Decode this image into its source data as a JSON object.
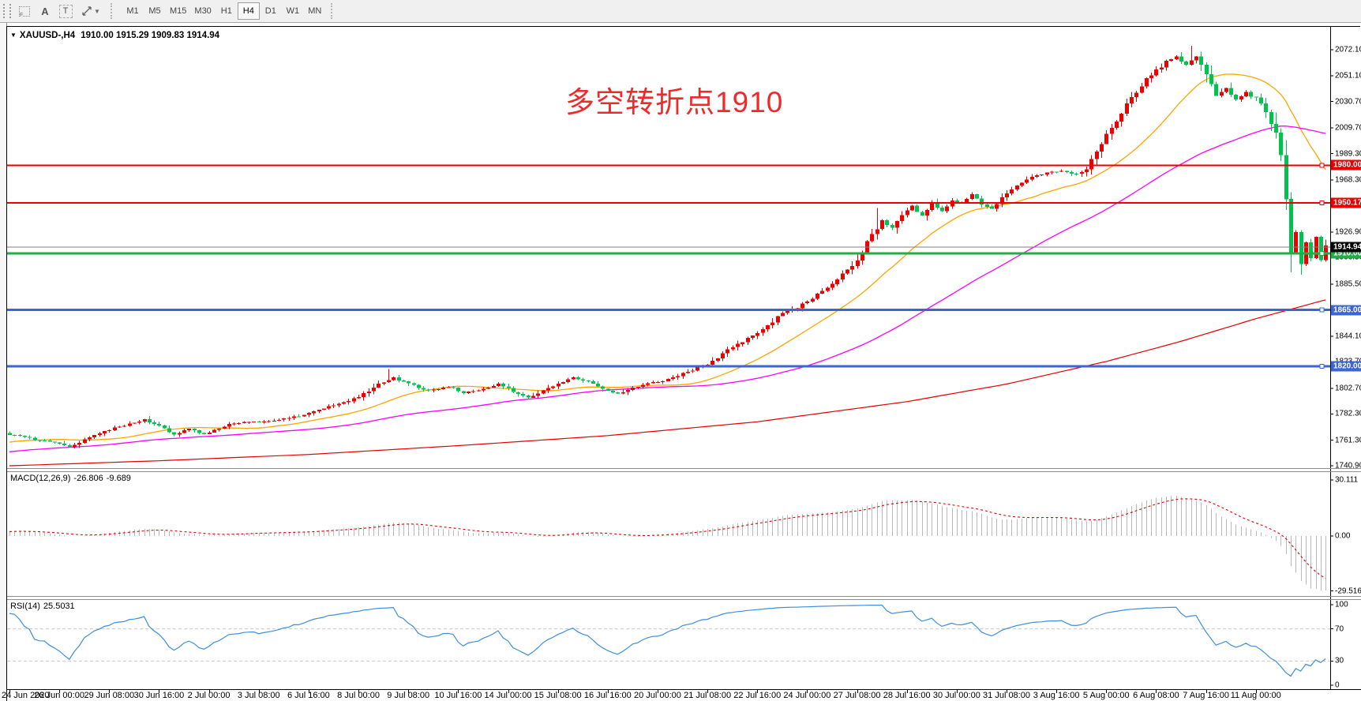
{
  "toolbar": {
    "icons": [
      "symbols-grid-icon",
      "text-a-icon",
      "text-label-icon",
      "cursor-mode-icon",
      "dropdown-caret-icon"
    ],
    "timeframes": [
      "M1",
      "M5",
      "M15",
      "M30",
      "H1",
      "H4",
      "D1",
      "W1",
      "MN"
    ],
    "active_timeframe": "H4"
  },
  "chart": {
    "symbol_label": "XAUUSD-,H4",
    "ohlc_text": "1910.00 1915.29 1909.83 1914.94",
    "annotation": {
      "text": "多空转折点1910",
      "color": "#ee2a2b"
    }
  },
  "chart_data": {
    "type": "candlestick",
    "symbol": "XAUUSD",
    "timeframe": "H4",
    "bars": 265,
    "time_labels": [
      "24 Jun 2020",
      "26 Jun 00:00",
      "29 Jun 08:00",
      "30 Jun 16:00",
      "2 Jul 00:00",
      "3 Jul 08:00",
      "6 Jul 16:00",
      "8 Jul 00:00",
      "9 Jul 08:00",
      "10 Jul 16:00",
      "14 Jul 00:00",
      "15 Jul 08:00",
      "16 Jul 16:00",
      "20 Jul 00:00",
      "21 Jul 08:00",
      "22 Jul 16:00",
      "24 Jul 00:00",
      "27 Jul 08:00",
      "28 Jul 16:00",
      "30 Jul 00:00",
      "31 Jul 08:00",
      "3 Aug 16:00",
      "5 Aug 00:00",
      "6 Aug 08:00",
      "7 Aug 16:00",
      "11 Aug 00:00"
    ],
    "price_axis_labels": [
      "2072.10",
      "2051.10",
      "2030.70",
      "2009.70",
      "1989.30",
      "1968.30",
      "1947.50",
      "1926.90",
      "1906.50",
      "1885.50",
      "1864.90",
      "1844.10",
      "1823.70",
      "1802.70",
      "1782.30",
      "1761.30",
      "1740.90"
    ],
    "price_path_anchors": [
      [
        0,
        1766
      ],
      [
        5,
        1762
      ],
      [
        10,
        1759
      ],
      [
        12,
        1756
      ],
      [
        16,
        1764
      ],
      [
        20,
        1770
      ],
      [
        24,
        1774
      ],
      [
        27,
        1778
      ],
      [
        30,
        1773
      ],
      [
        33,
        1766
      ],
      [
        36,
        1770
      ],
      [
        39,
        1766
      ],
      [
        42,
        1771
      ],
      [
        45,
        1775
      ],
      [
        50,
        1776
      ],
      [
        55,
        1778
      ],
      [
        60,
        1783
      ],
      [
        64,
        1788
      ],
      [
        68,
        1792
      ],
      [
        71,
        1798
      ],
      [
        74,
        1806
      ],
      [
        77,
        1811
      ],
      [
        80,
        1806
      ],
      [
        84,
        1801
      ],
      [
        88,
        1804
      ],
      [
        91,
        1799
      ],
      [
        95,
        1802
      ],
      [
        98,
        1806
      ],
      [
        101,
        1800
      ],
      [
        104,
        1795
      ],
      [
        107,
        1801
      ],
      [
        110,
        1807
      ],
      [
        113,
        1811
      ],
      [
        116,
        1808
      ],
      [
        119,
        1802
      ],
      [
        122,
        1798
      ],
      [
        125,
        1803
      ],
      [
        128,
        1806
      ],
      [
        131,
        1809
      ],
      [
        134,
        1813
      ],
      [
        137,
        1817
      ],
      [
        140,
        1822
      ],
      [
        143,
        1830
      ],
      [
        146,
        1838
      ],
      [
        149,
        1845
      ],
      [
        152,
        1852
      ],
      [
        155,
        1863
      ],
      [
        158,
        1867
      ],
      [
        161,
        1874
      ],
      [
        164,
        1883
      ],
      [
        167,
        1893
      ],
      [
        169,
        1899
      ],
      [
        171,
        1910
      ],
      [
        173,
        1925
      ],
      [
        175,
        1936
      ],
      [
        177,
        1930
      ],
      [
        179,
        1941
      ],
      [
        181,
        1948
      ],
      [
        183,
        1940
      ],
      [
        185,
        1950
      ],
      [
        187,
        1944
      ],
      [
        189,
        1952
      ],
      [
        191,
        1950
      ],
      [
        193,
        1957
      ],
      [
        195,
        1950
      ],
      [
        197,
        1945
      ],
      [
        199,
        1954
      ],
      [
        201,
        1960
      ],
      [
        203,
        1966
      ],
      [
        205,
        1971
      ],
      [
        208,
        1974
      ],
      [
        211,
        1976
      ],
      [
        214,
        1973
      ],
      [
        216,
        1978
      ],
      [
        218,
        1990
      ],
      [
        220,
        2005
      ],
      [
        222,
        2016
      ],
      [
        224,
        2028
      ],
      [
        226,
        2038
      ],
      [
        228,
        2048
      ],
      [
        230,
        2056
      ],
      [
        232,
        2062
      ],
      [
        234,
        2067
      ],
      [
        236,
        2060
      ],
      [
        238,
        2067
      ],
      [
        240,
        2052
      ],
      [
        242,
        2036
      ],
      [
        244,
        2042
      ],
      [
        246,
        2032
      ],
      [
        248,
        2038
      ],
      [
        250,
        2033
      ],
      [
        252,
        2024
      ],
      [
        254,
        2006
      ],
      [
        255,
        1988
      ],
      [
        256,
        1952
      ],
      [
        257,
        1914
      ],
      [
        258,
        1928
      ],
      [
        259,
        1902
      ],
      [
        260,
        1918
      ],
      [
        261,
        1906
      ],
      [
        262,
        1923
      ],
      [
        263,
        1904
      ],
      [
        264,
        1915
      ]
    ],
    "wick_spikes": [
      {
        "bar": 76,
        "high": 1818
      },
      {
        "bar": 174,
        "high": 1946
      },
      {
        "bar": 237,
        "high": 2075
      },
      {
        "bar": 257,
        "low": 1895
      },
      {
        "bar": 259,
        "low": 1893
      }
    ],
    "current_price": {
      "value": 1914.94,
      "label": "1914.94",
      "line_color": "#808080",
      "badge_color": "#000000"
    },
    "hlines": [
      {
        "price": 1980.0,
        "label": "1980.00",
        "color": "#e80000",
        "width": 2
      },
      {
        "price": 1950.17,
        "label": "1950.17",
        "color": "#e80000",
        "width": 2
      },
      {
        "price": 1910.0,
        "label": "1910.00",
        "color": "#22ac4a",
        "width": 3
      },
      {
        "price": 1865.0,
        "label": "1865.00",
        "color": "#3c64d2",
        "width": 3
      },
      {
        "price": 1820.0,
        "label": "1820.00",
        "color": "#3c64d2",
        "width": 3
      }
    ],
    "moving_averages": {
      "fast": {
        "period": 20,
        "color": "#ffa500"
      },
      "medium": {
        "period": 60,
        "color": "#ff00ff"
      },
      "slow": {
        "color": "#e60000",
        "anchors": [
          [
            0,
            1741
          ],
          [
            30,
            1745
          ],
          [
            60,
            1750
          ],
          [
            90,
            1757
          ],
          [
            120,
            1765
          ],
          [
            150,
            1776
          ],
          [
            180,
            1792
          ],
          [
            200,
            1806
          ],
          [
            220,
            1824
          ],
          [
            235,
            1840
          ],
          [
            250,
            1858
          ],
          [
            264,
            1873
          ]
        ]
      }
    },
    "candle_colors": {
      "bull": "#ee0000",
      "bear": "#00c24e"
    },
    "macd": {
      "label": "MACD(12,26,9)",
      "main_value": "-26.806",
      "signal_value": "-9.689",
      "axis": [
        {
          "v": 30.111,
          "label": "30.111"
        },
        {
          "v": 0,
          "label": "0.00"
        },
        {
          "v": -29.516,
          "label": "-29.516"
        }
      ],
      "histogram_color": "#b9b9b9",
      "signal_color": "#e00000"
    },
    "rsi": {
      "label": "RSI(14)",
      "value": "25.5031",
      "axis": [
        {
          "v": 100,
          "label": "100"
        },
        {
          "v": 70,
          "label": "70"
        },
        {
          "v": 30,
          "label": "30"
        },
        {
          "v": 0,
          "label": "0"
        }
      ],
      "levels": [
        70,
        30
      ],
      "line_color": "#3e8ede",
      "level_color": "#c8c8c8"
    }
  }
}
